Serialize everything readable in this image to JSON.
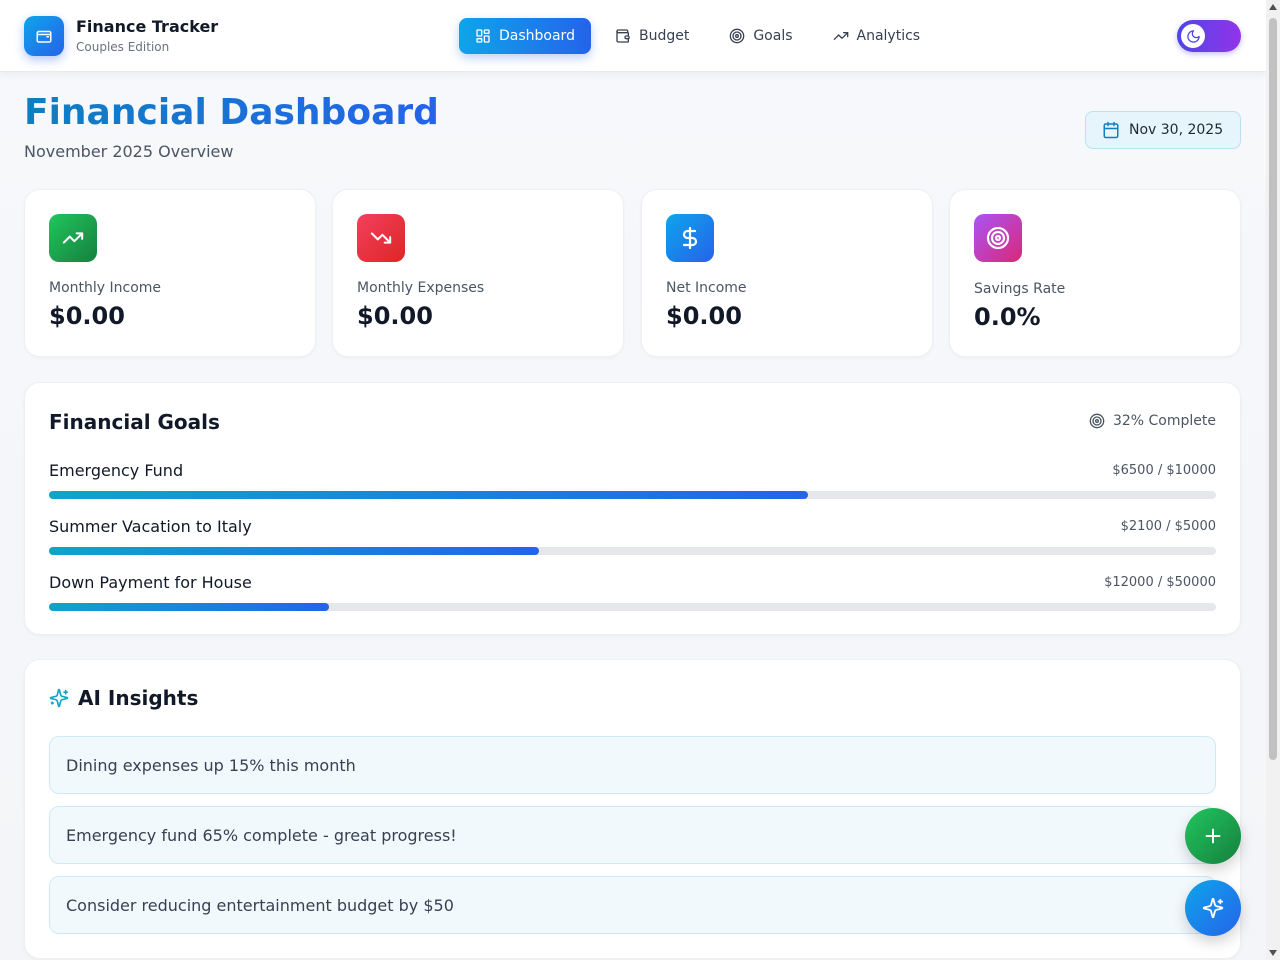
{
  "app": {
    "title": "Finance Tracker",
    "subtitle": "Couples Edition",
    "logo_icon": "wallet-icon"
  },
  "nav": [
    {
      "label": "Dashboard",
      "icon": "dashboard-grid-icon",
      "active": true
    },
    {
      "label": "Budget",
      "icon": "wallet-icon",
      "active": false
    },
    {
      "label": "Goals",
      "icon": "target-icon",
      "active": false
    },
    {
      "label": "Analytics",
      "icon": "trending-up-icon",
      "active": false
    }
  ],
  "theme_toggle": {
    "icon": "moon-icon",
    "colors": [
      "#4f46e5",
      "#9333ea"
    ]
  },
  "header": {
    "title": "Financial Dashboard",
    "subtitle": "November 2025 Overview",
    "date": "Nov 30, 2025"
  },
  "stats": [
    {
      "label": "Monthly Income",
      "value": "$0.00",
      "icon": "trending-up-icon",
      "color": "#16a34a"
    },
    {
      "label": "Monthly Expenses",
      "value": "$0.00",
      "icon": "trending-down-icon",
      "color": "#e11d48"
    },
    {
      "label": "Net Income",
      "value": "$0.00",
      "icon": "dollar-icon",
      "color": "#0ea5e9"
    },
    {
      "label": "Savings Rate",
      "value": "0.0%",
      "icon": "target-icon",
      "color": "#a855f7"
    }
  ],
  "goals": {
    "title": "Financial Goals",
    "complete_label": "32% Complete",
    "items": [
      {
        "name": "Emergency Fund",
        "amount": "$6500 / $10000",
        "progress": 0.65
      },
      {
        "name": "Summer Vacation to Italy",
        "amount": "$2100 / $5000",
        "progress": 0.42
      },
      {
        "name": "Down Payment for House",
        "amount": "$12000 / $50000",
        "progress": 0.24
      }
    ]
  },
  "insights": {
    "title": "AI Insights",
    "items": [
      "Dining expenses up 15% this month",
      "Emergency fund 65% complete - great progress!",
      "Consider reducing entertainment budget by $50"
    ]
  },
  "fabs": [
    {
      "icon": "plus-icon",
      "color": "#16a34a"
    },
    {
      "icon": "sparkles-icon",
      "color": "#2563eb"
    }
  ]
}
